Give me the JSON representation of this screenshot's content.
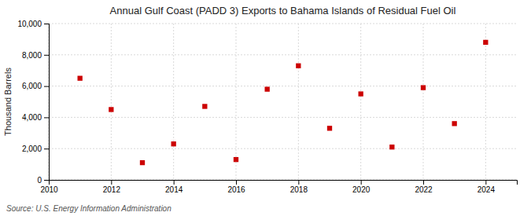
{
  "chart_data": {
    "type": "scatter",
    "title": "Annual Gulf Coast (PADD 3) Exports to Bahama Islands of Residual Fuel Oil",
    "ylabel": "Thousand Barrels",
    "source": "Source: U.S. Energy Information Administration",
    "x": [
      2011,
      2012,
      2013,
      2014,
      2015,
      2016,
      2017,
      2018,
      2019,
      2020,
      2021,
      2022,
      2023,
      2024
    ],
    "values": [
      6500,
      4500,
      1100,
      2300,
      4700,
      1300,
      5800,
      7300,
      3300,
      5500,
      2100,
      5900,
      3600,
      8800
    ],
    "color": "#cc0000",
    "marker": "square",
    "xlim": [
      2010,
      2025
    ],
    "ylim": [
      0,
      10000
    ],
    "xticks": [
      2010,
      2012,
      2014,
      2016,
      2018,
      2020,
      2022,
      2024
    ],
    "yticks": [
      0,
      {
        "value": 2000,
        "label": "2,000"
      },
      {
        "value": 4000,
        "label": "4,000"
      },
      {
        "value": 6000,
        "label": "6,000"
      },
      {
        "value": 8000,
        "label": "8,000"
      },
      {
        "value": 10000,
        "label": "10,000"
      }
    ],
    "grid": true
  }
}
